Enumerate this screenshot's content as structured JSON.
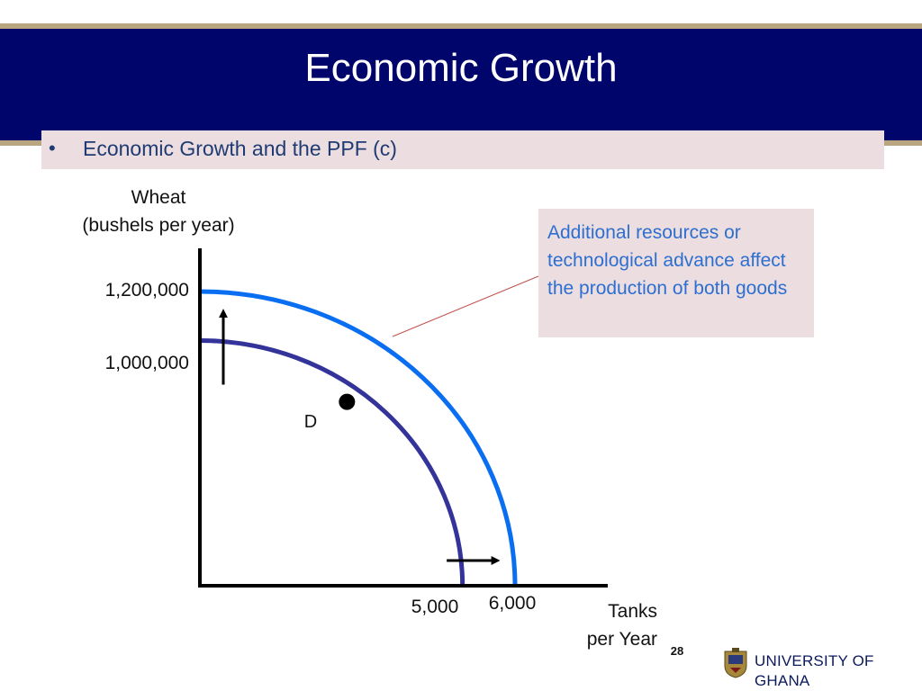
{
  "slide": {
    "title": "Economic Growth",
    "bullet": "•",
    "subtitle": "Economic Growth and the PPF (c)",
    "page_number": "28",
    "institution": "UNIVERSITY OF GHANA"
  },
  "colors": {
    "header": "#00056b",
    "gold_rule": "#b9a57f",
    "callout_bg": "#ecdde0",
    "old_ppf": "#33339a",
    "new_ppf": "#0a6ef0",
    "annotation_text": "#2d6fd0"
  },
  "chart_data": {
    "type": "line",
    "title": "",
    "ylabel": "Wheat\n(bushels per year)",
    "xlabel": "Tanks\nper Year",
    "y_ticks": [
      1000000,
      1200000
    ],
    "y_tick_labels": [
      "1,000,000",
      "1,200,000"
    ],
    "x_ticks": [
      5000,
      6000
    ],
    "x_tick_labels": [
      "5,000",
      "6,000"
    ],
    "series": [
      {
        "points": [
          [
            0,
            1000000
          ],
          [
            5000,
            0
          ]
        ]
      },
      {
        "points": [
          [
            0,
            1200000
          ],
          [
            6000,
            0
          ]
        ]
      }
    ],
    "point": {
      "label": "D",
      "x": 2800,
      "y": 750000,
      "series_index": 0
    },
    "annotation": "Additional resources or technological advance affect the production of both goods",
    "shift_arrows": [
      "up",
      "right"
    ]
  }
}
